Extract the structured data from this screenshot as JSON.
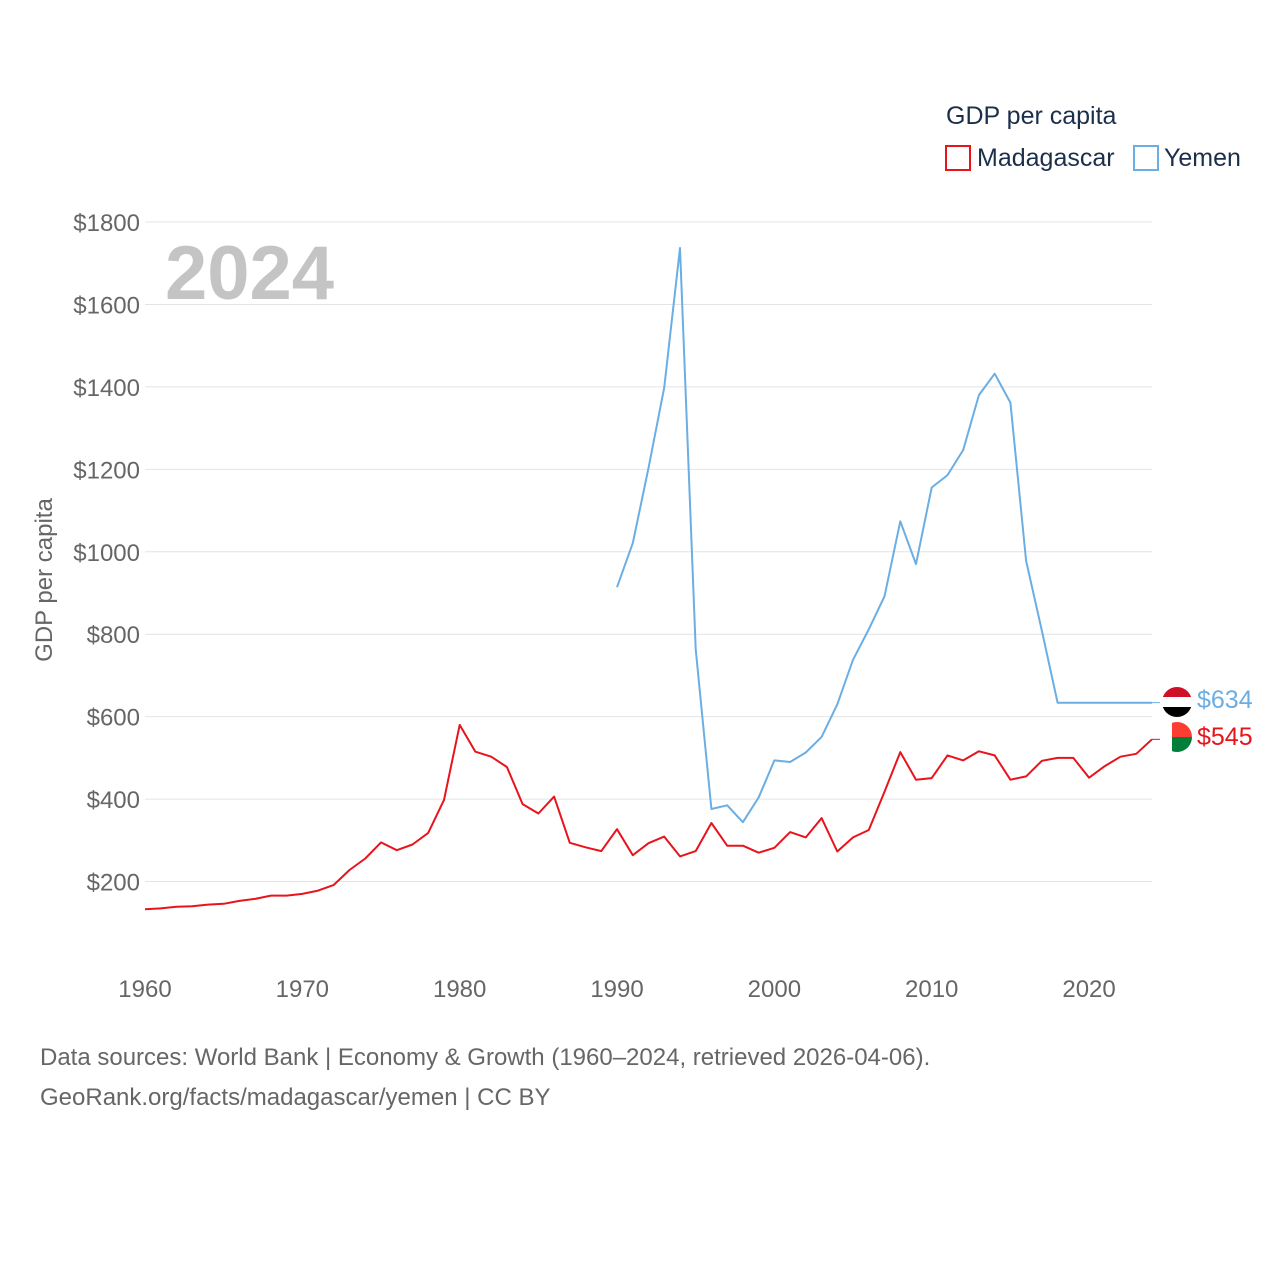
{
  "chart_data": {
    "type": "line",
    "title": "GDP per capita",
    "ylabel": "GDP per capita",
    "xlabel": "",
    "year_label": "2024",
    "xlim": [
      1960,
      2024
    ],
    "ylim": [
      0,
      1800
    ],
    "y_ticks": [
      200,
      400,
      600,
      800,
      1000,
      1200,
      1400,
      1600,
      1800
    ],
    "y_tick_labels": [
      "$200",
      "$400",
      "$600",
      "$800",
      "$1000",
      "$1200",
      "$1400",
      "$1600",
      "$1800"
    ],
    "x_ticks": [
      1960,
      1970,
      1980,
      1990,
      2000,
      2010,
      2020
    ],
    "x_tick_labels": [
      "1960",
      "1970",
      "1980",
      "1990",
      "2000",
      "2010",
      "2020"
    ],
    "grid": true,
    "legend_position": "top-right",
    "series": [
      {
        "name": "Madagascar",
        "color": "#e8141c",
        "end_label": "$545",
        "flag": "madagascar-flag",
        "x": [
          1960,
          1961,
          1962,
          1963,
          1964,
          1965,
          1966,
          1967,
          1968,
          1969,
          1970,
          1971,
          1972,
          1973,
          1974,
          1975,
          1976,
          1977,
          1978,
          1979,
          1980,
          1981,
          1982,
          1983,
          1984,
          1985,
          1986,
          1987,
          1988,
          1989,
          1990,
          1991,
          1992,
          1993,
          1994,
          1995,
          1996,
          1997,
          1998,
          1999,
          2000,
          2001,
          2002,
          2003,
          2004,
          2005,
          2006,
          2007,
          2008,
          2009,
          2010,
          2011,
          2012,
          2013,
          2014,
          2015,
          2016,
          2017,
          2018,
          2019,
          2020,
          2021,
          2022,
          2023,
          2024
        ],
        "values": [
          133,
          135,
          139,
          140,
          144,
          146,
          153,
          158,
          166,
          166,
          170,
          178,
          192,
          228,
          256,
          295,
          276,
          290,
          318,
          398,
          580,
          515,
          503,
          478,
          388,
          365,
          406,
          294,
          283,
          274,
          327,
          264,
          293,
          309,
          261,
          274,
          342,
          287,
          287,
          270,
          282,
          320,
          307,
          354,
          273,
          307,
          325,
          418,
          514,
          447,
          451,
          506,
          494,
          516,
          506,
          447,
          455,
          493,
          500,
          500,
          452,
          480,
          503,
          510,
          545
        ]
      },
      {
        "name": "Yemen",
        "color": "#6aaee4",
        "end_label": "$634",
        "flag": "yemen-flag",
        "x": [
          1990,
          1991,
          1992,
          1993,
          1994,
          1995,
          1996,
          1997,
          1998,
          1999,
          2000,
          2001,
          2002,
          2003,
          2004,
          2005,
          2006,
          2007,
          2008,
          2009,
          2010,
          2011,
          2012,
          2013,
          2014,
          2015,
          2016,
          2017,
          2018,
          2019,
          2020,
          2021,
          2022,
          2023,
          2024
        ],
        "values": [
          914,
          1021,
          1203,
          1398,
          1737,
          764,
          376,
          385,
          344,
          404,
          494,
          490,
          513,
          551,
          630,
          738,
          812,
          892,
          1074,
          970,
          1156,
          1186,
          1247,
          1380,
          1432,
          1362,
          978,
          808,
          634,
          634,
          634,
          634,
          634,
          634,
          634
        ]
      }
    ]
  },
  "footer": {
    "sources_line": "Data sources: World Bank | Economy & Growth (1960–2024, retrieved 2026-04-06).",
    "license_line": "GeoRank.org/facts/madagascar/yemen | CC BY"
  }
}
